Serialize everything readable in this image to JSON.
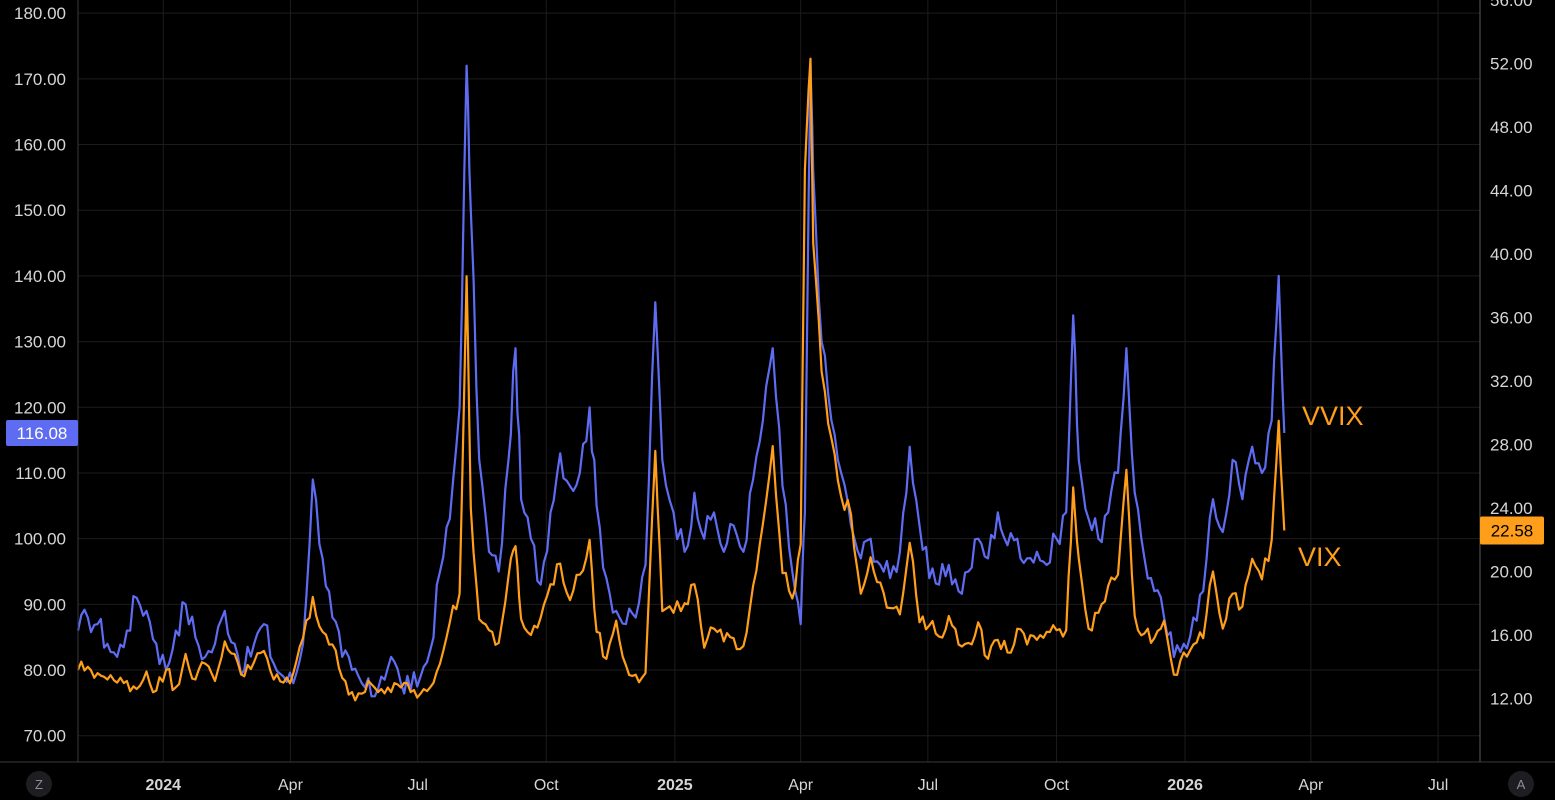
{
  "colors": {
    "background": "#000000",
    "grid": "#1c1c1c",
    "axis_text": "#d6d6d6",
    "vvix": "#5e6cf2",
    "vix": "#ff9e1b"
  },
  "buttons": {
    "left_label": "Z",
    "right_label": "A"
  },
  "chart_data": {
    "type": "line",
    "title": "",
    "grid": true,
    "x_start": "2023-11-01",
    "x_end": "2026-07-31",
    "x_ticks": [
      {
        "label": "2024",
        "date": "2024-01-01",
        "bold": true
      },
      {
        "label": "Apr",
        "date": "2024-04-01"
      },
      {
        "label": "Jul",
        "date": "2024-07-01"
      },
      {
        "label": "Oct",
        "date": "2024-10-01"
      },
      {
        "label": "2025",
        "date": "2025-01-01",
        "bold": true
      },
      {
        "label": "Apr",
        "date": "2025-04-01"
      },
      {
        "label": "Jul",
        "date": "2025-07-01"
      },
      {
        "label": "Oct",
        "date": "2025-10-01"
      },
      {
        "label": "2026",
        "date": "2026-01-01",
        "bold": true
      },
      {
        "label": "Apr",
        "date": "2026-04-01"
      },
      {
        "label": "Jul",
        "date": "2026-07-01"
      }
    ],
    "left_axis": {
      "min": 66,
      "max": 182,
      "ticks": [
        "70.00",
        "80.00",
        "90.00",
        "100.00",
        "110.00",
        "120.00",
        "130.00",
        "140.00",
        "150.00",
        "160.00",
        "170.00",
        "180.00"
      ]
    },
    "right_axis": {
      "min": 8,
      "max": 56,
      "ticks": [
        "12.00",
        "16.00",
        "20.00",
        "24.00",
        "28.00",
        "32.00",
        "36.00",
        "40.00",
        "44.00",
        "48.00",
        "52.00",
        "56.00"
      ]
    },
    "series": [
      {
        "name": "VVIX",
        "axis": "left",
        "color": "#5e6cf2",
        "last_value": "116.08",
        "points": [
          [
            "2023-11-01",
            86
          ],
          [
            "2023-11-08",
            88
          ],
          [
            "2023-11-15",
            87
          ],
          [
            "2023-11-22",
            84
          ],
          [
            "2023-11-29",
            82
          ],
          [
            "2023-12-06",
            86
          ],
          [
            "2023-12-13",
            91
          ],
          [
            "2023-12-20",
            89
          ],
          [
            "2023-12-27",
            84
          ],
          [
            "2024-01-03",
            80
          ],
          [
            "2024-01-10",
            86
          ],
          [
            "2024-01-17",
            90
          ],
          [
            "2024-01-24",
            85
          ],
          [
            "2024-01-31",
            82
          ],
          [
            "2024-02-07",
            84
          ],
          [
            "2024-02-14",
            89
          ],
          [
            "2024-02-21",
            84
          ],
          [
            "2024-02-28",
            80
          ],
          [
            "2024-03-06",
            84
          ],
          [
            "2024-03-13",
            87
          ],
          [
            "2024-03-20",
            81
          ],
          [
            "2024-03-27",
            79
          ],
          [
            "2024-04-03",
            78
          ],
          [
            "2024-04-10",
            84
          ],
          [
            "2024-04-17",
            109
          ],
          [
            "2024-04-24",
            97
          ],
          [
            "2024-05-01",
            88
          ],
          [
            "2024-05-08",
            82
          ],
          [
            "2024-05-15",
            80
          ],
          [
            "2024-05-22",
            78
          ],
          [
            "2024-05-29",
            76
          ],
          [
            "2024-06-05",
            79
          ],
          [
            "2024-06-12",
            82
          ],
          [
            "2024-06-19",
            78
          ],
          [
            "2024-06-26",
            77
          ],
          [
            "2024-07-03",
            79
          ],
          [
            "2024-07-10",
            83
          ],
          [
            "2024-07-17",
            95
          ],
          [
            "2024-07-24",
            103
          ],
          [
            "2024-07-31",
            120
          ],
          [
            "2024-08-05",
            172
          ],
          [
            "2024-08-08",
            150
          ],
          [
            "2024-08-14",
            112
          ],
          [
            "2024-08-21",
            98
          ],
          [
            "2024-08-28",
            95
          ],
          [
            "2024-09-04",
            112
          ],
          [
            "2024-09-09",
            129
          ],
          [
            "2024-09-13",
            106
          ],
          [
            "2024-09-20",
            100
          ],
          [
            "2024-09-27",
            93
          ],
          [
            "2024-10-04",
            104
          ],
          [
            "2024-10-11",
            113
          ],
          [
            "2024-10-18",
            108
          ],
          [
            "2024-10-25",
            110
          ],
          [
            "2024-11-01",
            120
          ],
          [
            "2024-11-06",
            105
          ],
          [
            "2024-11-13",
            94
          ],
          [
            "2024-11-20",
            89
          ],
          [
            "2024-11-27",
            87
          ],
          [
            "2024-12-04",
            88
          ],
          [
            "2024-12-11",
            96
          ],
          [
            "2024-12-18",
            136
          ],
          [
            "2024-12-23",
            112
          ],
          [
            "2024-12-31",
            104
          ],
          [
            "2025-01-08",
            98
          ],
          [
            "2025-01-15",
            107
          ],
          [
            "2025-01-22",
            100
          ],
          [
            "2025-01-29",
            104
          ],
          [
            "2025-02-05",
            98
          ],
          [
            "2025-02-12",
            102
          ],
          [
            "2025-02-19",
            98
          ],
          [
            "2025-02-26",
            109
          ],
          [
            "2025-03-05",
            118
          ],
          [
            "2025-03-12",
            129
          ],
          [
            "2025-03-19",
            108
          ],
          [
            "2025-03-26",
            95
          ],
          [
            "2025-04-01",
            87
          ],
          [
            "2025-04-04",
            104
          ],
          [
            "2025-04-08",
            172
          ],
          [
            "2025-04-10",
            156
          ],
          [
            "2025-04-16",
            130
          ],
          [
            "2025-04-23",
            118
          ],
          [
            "2025-04-30",
            110
          ],
          [
            "2025-05-07",
            102
          ],
          [
            "2025-05-14",
            97
          ],
          [
            "2025-05-21",
            100
          ],
          [
            "2025-05-28",
            96
          ],
          [
            "2025-06-04",
            94
          ],
          [
            "2025-06-11",
            98
          ],
          [
            "2025-06-18",
            114
          ],
          [
            "2025-06-25",
            102
          ],
          [
            "2025-07-02",
            94
          ],
          [
            "2025-07-09",
            93
          ],
          [
            "2025-07-16",
            96
          ],
          [
            "2025-07-23",
            92
          ],
          [
            "2025-07-30",
            95
          ],
          [
            "2025-08-06",
            100
          ],
          [
            "2025-08-13",
            97
          ],
          [
            "2025-08-20",
            104
          ],
          [
            "2025-08-27",
            99
          ],
          [
            "2025-09-03",
            100
          ],
          [
            "2025-09-10",
            97
          ],
          [
            "2025-09-17",
            98
          ],
          [
            "2025-09-24",
            96
          ],
          [
            "2025-10-01",
            100
          ],
          [
            "2025-10-08",
            104
          ],
          [
            "2025-10-13",
            134
          ],
          [
            "2025-10-17",
            112
          ],
          [
            "2025-10-24",
            103
          ],
          [
            "2025-10-31",
            100
          ],
          [
            "2025-11-07",
            104
          ],
          [
            "2025-11-14",
            110
          ],
          [
            "2025-11-20",
            129
          ],
          [
            "2025-11-26",
            107
          ],
          [
            "2025-12-03",
            97
          ],
          [
            "2025-12-10",
            92
          ],
          [
            "2025-12-17",
            88
          ],
          [
            "2025-12-24",
            82
          ],
          [
            "2025-12-31",
            84
          ],
          [
            "2026-01-07",
            88
          ],
          [
            "2026-01-14",
            92
          ],
          [
            "2026-01-21",
            106
          ],
          [
            "2026-01-28",
            101
          ],
          [
            "2026-02-04",
            112
          ],
          [
            "2026-02-11",
            106
          ],
          [
            "2026-02-18",
            114
          ],
          [
            "2026-02-25",
            110
          ],
          [
            "2026-03-04",
            118
          ],
          [
            "2026-03-09",
            140
          ],
          [
            "2026-03-13",
            116.08
          ]
        ]
      },
      {
        "name": "VIX",
        "axis": "right",
        "color": "#ff9e1b",
        "last_value": "22.58",
        "points": [
          [
            "2023-11-01",
            13.8
          ],
          [
            "2023-11-08",
            14.0
          ],
          [
            "2023-11-15",
            13.6
          ],
          [
            "2023-11-22",
            13.2
          ],
          [
            "2023-11-29",
            13.0
          ],
          [
            "2023-12-06",
            13.1
          ],
          [
            "2023-12-13",
            12.6
          ],
          [
            "2023-12-20",
            13.7
          ],
          [
            "2023-12-27",
            12.5
          ],
          [
            "2024-01-03",
            13.8
          ],
          [
            "2024-01-10",
            12.7
          ],
          [
            "2024-01-17",
            14.8
          ],
          [
            "2024-01-24",
            13.2
          ],
          [
            "2024-01-31",
            14.2
          ],
          [
            "2024-02-07",
            13.1
          ],
          [
            "2024-02-14",
            15.6
          ],
          [
            "2024-02-21",
            14.8
          ],
          [
            "2024-02-28",
            13.4
          ],
          [
            "2024-03-06",
            14.3
          ],
          [
            "2024-03-13",
            15.0
          ],
          [
            "2024-03-20",
            13.2
          ],
          [
            "2024-03-27",
            13.0
          ],
          [
            "2024-04-03",
            13.6
          ],
          [
            "2024-04-10",
            15.8
          ],
          [
            "2024-04-17",
            18.4
          ],
          [
            "2024-04-24",
            16.2
          ],
          [
            "2024-05-01",
            15.4
          ],
          [
            "2024-05-08",
            13.3
          ],
          [
            "2024-05-15",
            12.4
          ],
          [
            "2024-05-22",
            12.3
          ],
          [
            "2024-05-29",
            12.9
          ],
          [
            "2024-06-05",
            12.6
          ],
          [
            "2024-06-12",
            12.4
          ],
          [
            "2024-06-19",
            12.7
          ],
          [
            "2024-06-26",
            12.4
          ],
          [
            "2024-07-03",
            12.3
          ],
          [
            "2024-07-10",
            12.7
          ],
          [
            "2024-07-17",
            14.2
          ],
          [
            "2024-07-24",
            16.8
          ],
          [
            "2024-07-31",
            18.6
          ],
          [
            "2024-08-05",
            38.6
          ],
          [
            "2024-08-08",
            24.0
          ],
          [
            "2024-08-14",
            17.0
          ],
          [
            "2024-08-21",
            16.3
          ],
          [
            "2024-08-28",
            15.5
          ],
          [
            "2024-09-04",
            19.7
          ],
          [
            "2024-09-09",
            21.6
          ],
          [
            "2024-09-13",
            17.0
          ],
          [
            "2024-09-20",
            16.0
          ],
          [
            "2024-09-27",
            17.1
          ],
          [
            "2024-10-04",
            19.2
          ],
          [
            "2024-10-11",
            20.5
          ],
          [
            "2024-10-18",
            18.2
          ],
          [
            "2024-10-25",
            19.8
          ],
          [
            "2024-11-01",
            22.0
          ],
          [
            "2024-11-06",
            16.2
          ],
          [
            "2024-11-13",
            14.5
          ],
          [
            "2024-11-20",
            16.9
          ],
          [
            "2024-11-27",
            14.1
          ],
          [
            "2024-12-04",
            13.5
          ],
          [
            "2024-12-11",
            13.6
          ],
          [
            "2024-12-18",
            27.6
          ],
          [
            "2024-12-23",
            17.5
          ],
          [
            "2024-12-31",
            17.4
          ],
          [
            "2025-01-08",
            18.0
          ],
          [
            "2025-01-15",
            19.2
          ],
          [
            "2025-01-22",
            15.2
          ],
          [
            "2025-01-29",
            16.4
          ],
          [
            "2025-02-05",
            15.6
          ],
          [
            "2025-02-12",
            15.8
          ],
          [
            "2025-02-19",
            15.3
          ],
          [
            "2025-02-26",
            19.1
          ],
          [
            "2025-03-05",
            23.0
          ],
          [
            "2025-03-12",
            27.9
          ],
          [
            "2025-03-19",
            19.9
          ],
          [
            "2025-03-26",
            18.3
          ],
          [
            "2025-04-01",
            21.7
          ],
          [
            "2025-04-04",
            45.3
          ],
          [
            "2025-04-08",
            52.3
          ],
          [
            "2025-04-10",
            40.7
          ],
          [
            "2025-04-16",
            32.6
          ],
          [
            "2025-04-23",
            28.4
          ],
          [
            "2025-04-30",
            24.7
          ],
          [
            "2025-05-07",
            23.6
          ],
          [
            "2025-05-14",
            18.6
          ],
          [
            "2025-05-21",
            20.9
          ],
          [
            "2025-05-28",
            19.3
          ],
          [
            "2025-06-04",
            17.7
          ],
          [
            "2025-06-11",
            17.3
          ],
          [
            "2025-06-18",
            21.8
          ],
          [
            "2025-06-25",
            16.8
          ],
          [
            "2025-07-02",
            16.6
          ],
          [
            "2025-07-09",
            15.9
          ],
          [
            "2025-07-16",
            17.2
          ],
          [
            "2025-07-23",
            15.4
          ],
          [
            "2025-07-30",
            15.5
          ],
          [
            "2025-08-06",
            16.8
          ],
          [
            "2025-08-13",
            14.5
          ],
          [
            "2025-08-20",
            15.7
          ],
          [
            "2025-08-27",
            14.9
          ],
          [
            "2025-09-03",
            16.4
          ],
          [
            "2025-09-10",
            15.4
          ],
          [
            "2025-09-17",
            15.7
          ],
          [
            "2025-09-24",
            16.2
          ],
          [
            "2025-10-01",
            16.3
          ],
          [
            "2025-10-08",
            16.3
          ],
          [
            "2025-10-13",
            25.3
          ],
          [
            "2025-10-17",
            20.8
          ],
          [
            "2025-10-24",
            16.4
          ],
          [
            "2025-10-31",
            17.4
          ],
          [
            "2025-11-07",
            19.1
          ],
          [
            "2025-11-14",
            19.8
          ],
          [
            "2025-11-20",
            26.4
          ],
          [
            "2025-11-26",
            17.2
          ],
          [
            "2025-12-03",
            16.1
          ],
          [
            "2025-12-10",
            15.8
          ],
          [
            "2025-12-17",
            16.9
          ],
          [
            "2025-12-24",
            13.5
          ],
          [
            "2025-12-31",
            14.9
          ],
          [
            "2026-01-07",
            15.4
          ],
          [
            "2026-01-14",
            15.8
          ],
          [
            "2026-01-21",
            20.0
          ],
          [
            "2026-01-28",
            16.4
          ],
          [
            "2026-02-04",
            18.6
          ],
          [
            "2026-02-11",
            17.8
          ],
          [
            "2026-02-18",
            20.8
          ],
          [
            "2026-02-25",
            19.5
          ],
          [
            "2026-03-04",
            22.0
          ],
          [
            "2026-03-09",
            29.5
          ],
          [
            "2026-03-13",
            22.58
          ]
        ]
      }
    ],
    "annotations": [
      {
        "text": "VVIX",
        "color": "#ff9e1b"
      },
      {
        "text": "VIX",
        "color": "#ff9e1b"
      }
    ]
  }
}
